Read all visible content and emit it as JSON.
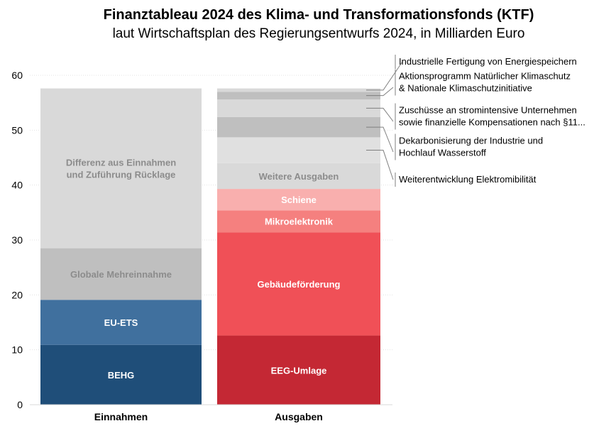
{
  "chart_data": {
    "type": "bar",
    "stacked": true,
    "title": "Finanztableau 2024 des Klima- und Transformationsfonds (KTF)",
    "subtitle": "laut Wirtschaftsplan des Regierungsentwurfs  2024, in Milliarden Euro",
    "categories": [
      "Einnahmen",
      "Ausgaben"
    ],
    "ylim": [
      0,
      60
    ],
    "yticks": [
      0,
      10,
      20,
      30,
      40,
      50,
      60
    ],
    "grid": true,
    "stacks": [
      {
        "category": "Einnahmen",
        "segments": [
          {
            "label": "BEHG",
            "value": 10.9,
            "color": "#1f4e79",
            "text_color": "#ffffff"
          },
          {
            "label": "EU-ETS",
            "value": 8.2,
            "color": "#40709e",
            "text_color": "#ffffff"
          },
          {
            "label": "Globale Mehreinnahme",
            "value": 9.4,
            "color": "#bfbfbf",
            "text_color": "#8c8c8c"
          },
          {
            "label": "Differenz aus Einnahmen und Zuführung  Rücklage",
            "label_lines": [
              "Differenz aus Einnahmen",
              "und Zuführung  Rücklage"
            ],
            "value": 29.1,
            "color": "#d9d9d9",
            "text_color": "#8c8c8c"
          }
        ]
      },
      {
        "category": "Ausgaben",
        "segments": [
          {
            "label": "EEG-Umlage",
            "value": 12.6,
            "color": "#c42834",
            "text_color": "#ffffff"
          },
          {
            "label": "Gebäudeförderung",
            "value": 18.8,
            "color": "#f05057",
            "text_color": "#ffffff"
          },
          {
            "label": "Mikroelektronik",
            "value": 4.0,
            "color": "#f5807f",
            "text_color": "#ffffff"
          },
          {
            "label": "Schiene",
            "value": 3.9,
            "color": "#f9afae",
            "text_color": "#ffffff"
          },
          {
            "label": "Weitere Ausgaben",
            "value": 4.7,
            "color": "#d9d9d9",
            "text_color": "#8c8c8c"
          },
          {
            "label": "Weiterentwicklung Elektromibilität",
            "label_lines": [
              "Weiterentwicklung Elektromibilität"
            ],
            "value": 4.7,
            "color": "#e0e0e0",
            "callout": true
          },
          {
            "label": "Dekarbonisierung der Industrie und Hochlauf Wasserstoff",
            "label_lines": [
              "Dekarbonisierung der Industrie und",
              "Hochlauf Wasserstoff"
            ],
            "value": 3.7,
            "color": "#bfbfbf",
            "callout": true
          },
          {
            "label": "Zuschüsse an stromintensive Unternehmen sowie finanzielle Kompensationen nach §11...",
            "label_lines": [
              "Zuschüsse an stromintensive Unternehmen",
              "sowie finanzielle Kompensationen nach §11..."
            ],
            "value": 3.2,
            "color": "#d9d9d9",
            "callout": true
          },
          {
            "label": "Aktionsprogramm Natürlicher Klimaschutz & Nationale Klimaschutzinitiative",
            "label_lines": [
              "Aktionsprogramm Natürlicher Klimaschutz",
              "& Nationale Klimaschutzinitiative"
            ],
            "value": 1.4,
            "color": "#bfbfbf",
            "callout": true
          },
          {
            "label": "Industrielle Fertigung von Energiespeichern",
            "label_lines": [
              "Industrielle Fertigung von Energiespeichern"
            ],
            "value": 0.6,
            "color": "#d9d9d9",
            "callout": true
          }
        ]
      }
    ]
  }
}
